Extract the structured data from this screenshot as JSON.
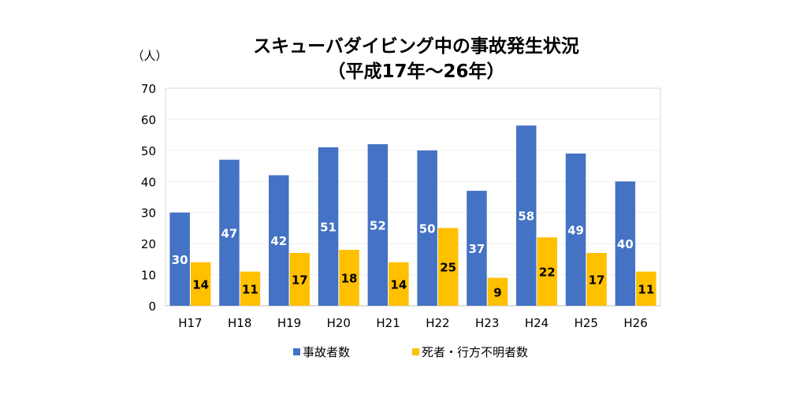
{
  "chart_data": {
    "type": "bar",
    "title": "スキューバダイビング中の事故発生状況",
    "subtitle": "（平成17年～26年）",
    "ylabel": "（人）",
    "xlabel": "",
    "ylim": [
      0,
      70
    ],
    "yticks": [
      0,
      10,
      20,
      30,
      40,
      50,
      60,
      70
    ],
    "grid": true,
    "legend_position": "bottom",
    "categories": [
      "H17",
      "H18",
      "H19",
      "H20",
      "H21",
      "H22",
      "H23",
      "H24",
      "H25",
      "H26"
    ],
    "series": [
      {
        "name": "事故者数",
        "color": "#4472C4",
        "label_color": "#ffffff",
        "values": [
          30,
          47,
          42,
          51,
          52,
          50,
          37,
          58,
          49,
          40
        ]
      },
      {
        "name": "死者・行方不明者数",
        "color": "#FFC000",
        "label_color": "#000000",
        "values": [
          14,
          11,
          17,
          18,
          14,
          25,
          9,
          22,
          17,
          11
        ]
      }
    ]
  }
}
